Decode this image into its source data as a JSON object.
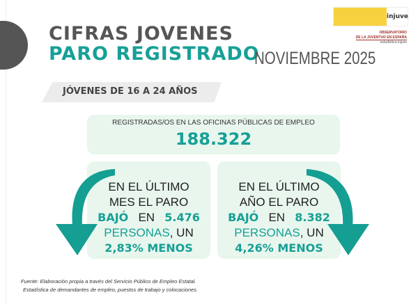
{
  "header": {
    "title_line1": "CIFRAS JOVENES",
    "title_line2": "PARO REGISTRADO",
    "period": "NOVIEMBRE 2025",
    "logo": {
      "text": "injuve",
      "org_line1": "OBSERVATORIO",
      "org_line2": "DE LA JUVENTUD EN ESPAÑA",
      "site": "estadistica-injuve"
    }
  },
  "age_group": "JÓVENES DE 16 A 24 AÑOS",
  "total": {
    "label": "REGISTRADAS/OS EN LAS OFICINAS PÚBLICAS DE EMPLEO",
    "value": "188.322"
  },
  "monthly": {
    "line1": "EN EL ÚLTIMO",
    "line2": "MES EL PARO",
    "verb": "BAJÓ",
    "en": "EN",
    "amount": "5.476",
    "persons": "PERSONAS",
    "un": ", UN",
    "pct": "2,83% MENOS"
  },
  "yearly": {
    "line1": "EN EL ÚLTIMO",
    "line2": "AÑO EL PARO",
    "verb": "BAJÓ",
    "en": "EN",
    "amount": "8.382",
    "persons": "PERSONAS",
    "un": ", UN",
    "pct": "4,26% MENOS"
  },
  "footer": {
    "line1": "Fuente: Elaboración propia a través del Servicio Público de Empleo Estatal.",
    "line2": "Estadística de demandantes de empleo, puestos de trabajo y colocaciones."
  },
  "colors": {
    "accent": "#17a097",
    "box": "#e8f6ed",
    "gray": "#555555"
  }
}
